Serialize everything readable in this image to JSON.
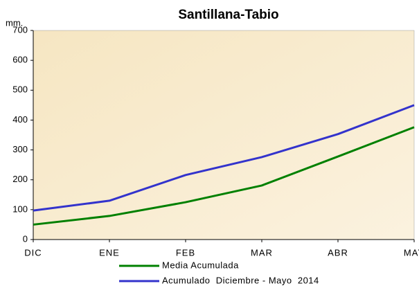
{
  "chart_data": {
    "type": "line",
    "title": "Santillana-Tabio",
    "y_label": "mm.",
    "categories": [
      "DIC",
      "ENE",
      "FEB",
      "MAR",
      "ABR",
      "MAY"
    ],
    "series": [
      {
        "name": "Media Acumulada",
        "color": "#008000",
        "values": [
          50,
          79,
          125,
          181,
          278,
          376
        ]
      },
      {
        "name": "Acumulado  Diciembre - Mayo  2014",
        "color": "#3333cc",
        "values": [
          97,
          130,
          216,
          276,
          353,
          450
        ]
      }
    ],
    "ylim": [
      0,
      700
    ],
    "yticks": [
      0,
      100,
      200,
      300,
      400,
      500,
      600,
      700
    ],
    "grid": false
  }
}
